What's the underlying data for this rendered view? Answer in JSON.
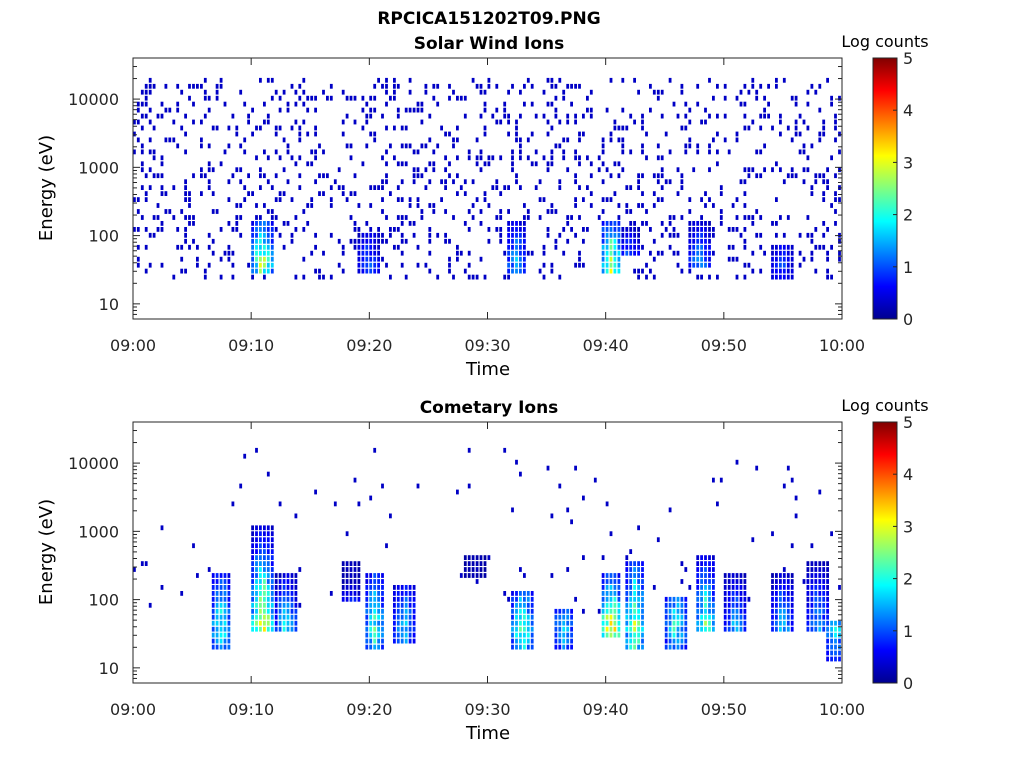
{
  "figure": {
    "title": "RPCICA151202T09.PNG",
    "colormap": [
      "#00008f",
      "#0000ff",
      "#0080ff",
      "#00ffff",
      "#80ff80",
      "#ffff00",
      "#ff8000",
      "#ff0000",
      "#800000"
    ]
  },
  "chart_data": [
    {
      "type": "heatmap",
      "title": "Solar Wind Ions",
      "xlabel": "Time",
      "ylabel": "Energy (eV)",
      "x_ticks": [
        "09:00",
        "09:10",
        "09:20",
        "09:30",
        "09:40",
        "09:50",
        "10:00"
      ],
      "x_range_minutes": [
        0,
        60
      ],
      "y_scale": "log",
      "y_ticks": [
        10,
        100,
        1000,
        10000
      ],
      "ylim": [
        6,
        40000
      ],
      "colorbar": {
        "label": "Log counts",
        "range": [
          0,
          5
        ],
        "ticks": [
          0,
          1,
          2,
          3,
          4,
          5
        ]
      },
      "background_noise": {
        "density": 0.55,
        "energy_range": [
          20,
          20000
        ],
        "level": 0.3
      },
      "features": [
        {
          "t": 11.0,
          "e_low": 25,
          "e_high": 150,
          "peak": 3.0
        },
        {
          "t": 20.0,
          "e_low": 25,
          "e_high": 100,
          "peak": 1.2
        },
        {
          "t": 32.5,
          "e_low": 25,
          "e_high": 150,
          "peak": 1.6
        },
        {
          "t": 40.5,
          "e_low": 25,
          "e_high": 150,
          "peak": 3.0
        },
        {
          "t": 42.0,
          "e_low": 40,
          "e_high": 120,
          "peak": 1.5
        },
        {
          "t": 48.0,
          "e_low": 30,
          "e_high": 150,
          "peak": 1.5
        },
        {
          "t": 55.0,
          "e_low": 20,
          "e_high": 60,
          "peak": 1.0
        }
      ]
    },
    {
      "type": "heatmap",
      "title": "Cometary Ions",
      "xlabel": "Time",
      "ylabel": "Energy (eV)",
      "x_ticks": [
        "09:00",
        "09:10",
        "09:20",
        "09:30",
        "09:40",
        "09:50",
        "10:00"
      ],
      "x_range_minutes": [
        0,
        60
      ],
      "y_scale": "log",
      "y_ticks": [
        10,
        100,
        1000,
        10000
      ],
      "ylim": [
        6,
        40000
      ],
      "colorbar": {
        "label": "Log counts",
        "range": [
          0,
          5
        ],
        "ticks": [
          0,
          1,
          2,
          3,
          4,
          5
        ]
      },
      "background_noise": {
        "density": 0.06,
        "energy_range": [
          50,
          15000
        ],
        "level": 0.3
      },
      "features": [
        {
          "t": 7.5,
          "e_low": 15,
          "e_high": 200,
          "peak": 2.2
        },
        {
          "t": 11.0,
          "e_low": 30,
          "e_high": 1000,
          "peak": 3.5
        },
        {
          "t": 13.0,
          "e_low": 30,
          "e_high": 200,
          "peak": 2.0
        },
        {
          "t": 18.5,
          "e_low": 80,
          "e_high": 300,
          "peak": 1.8
        },
        {
          "t": 20.5,
          "e_low": 15,
          "e_high": 200,
          "peak": 2.2
        },
        {
          "t": 23.0,
          "e_low": 20,
          "e_high": 150,
          "peak": 1.8
        },
        {
          "t": 29.0,
          "e_low": 200,
          "e_high": 400,
          "peak": 1.6
        },
        {
          "t": 33.0,
          "e_low": 15,
          "e_high": 120,
          "peak": 2.6
        },
        {
          "t": 36.5,
          "e_low": 15,
          "e_high": 60,
          "peak": 1.8
        },
        {
          "t": 40.5,
          "e_low": 25,
          "e_high": 200,
          "peak": 3.6
        },
        {
          "t": 42.5,
          "e_low": 15,
          "e_high": 300,
          "peak": 2.8
        },
        {
          "t": 46.0,
          "e_low": 15,
          "e_high": 100,
          "peak": 2.2
        },
        {
          "t": 48.5,
          "e_low": 30,
          "e_high": 400,
          "peak": 2.6
        },
        {
          "t": 51.0,
          "e_low": 30,
          "e_high": 200,
          "peak": 1.6
        },
        {
          "t": 55.0,
          "e_low": 30,
          "e_high": 200,
          "peak": 1.8
        },
        {
          "t": 58.0,
          "e_low": 30,
          "e_high": 300,
          "peak": 1.6
        },
        {
          "t": 59.5,
          "e_low": 10,
          "e_high": 40,
          "peak": 2.0
        }
      ]
    }
  ]
}
